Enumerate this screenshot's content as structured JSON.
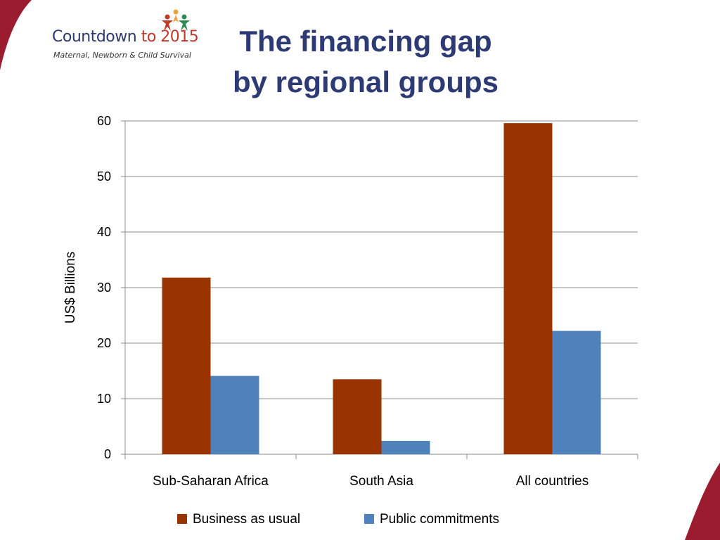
{
  "logo": {
    "name_main": "Countdown ",
    "name_accent": "to 2015",
    "subtitle": "Maternal, Newborn & Child Survival"
  },
  "title_line1": "The financing gap",
  "title_line2": "by regional groups",
  "colors": {
    "business_as_usual": "#993300",
    "public_commitments": "#4f81bd",
    "title": "#2e3a74",
    "corner": "#9b1c2e"
  },
  "chart_data": {
    "type": "bar",
    "title": "",
    "xlabel": "",
    "ylabel": "US$ Billions",
    "ylim": [
      0,
      60
    ],
    "yticks": [
      0,
      10,
      20,
      30,
      40,
      50,
      60
    ],
    "grid": true,
    "legend_position": "bottom",
    "categories": [
      "Sub-Saharan Africa",
      "South Asia",
      "All countries"
    ],
    "series": [
      {
        "name": "Business as usual",
        "values": [
          31.8,
          13.5,
          59.6
        ]
      },
      {
        "name": "Public commitments",
        "values": [
          14.1,
          2.4,
          22.2
        ]
      }
    ]
  }
}
